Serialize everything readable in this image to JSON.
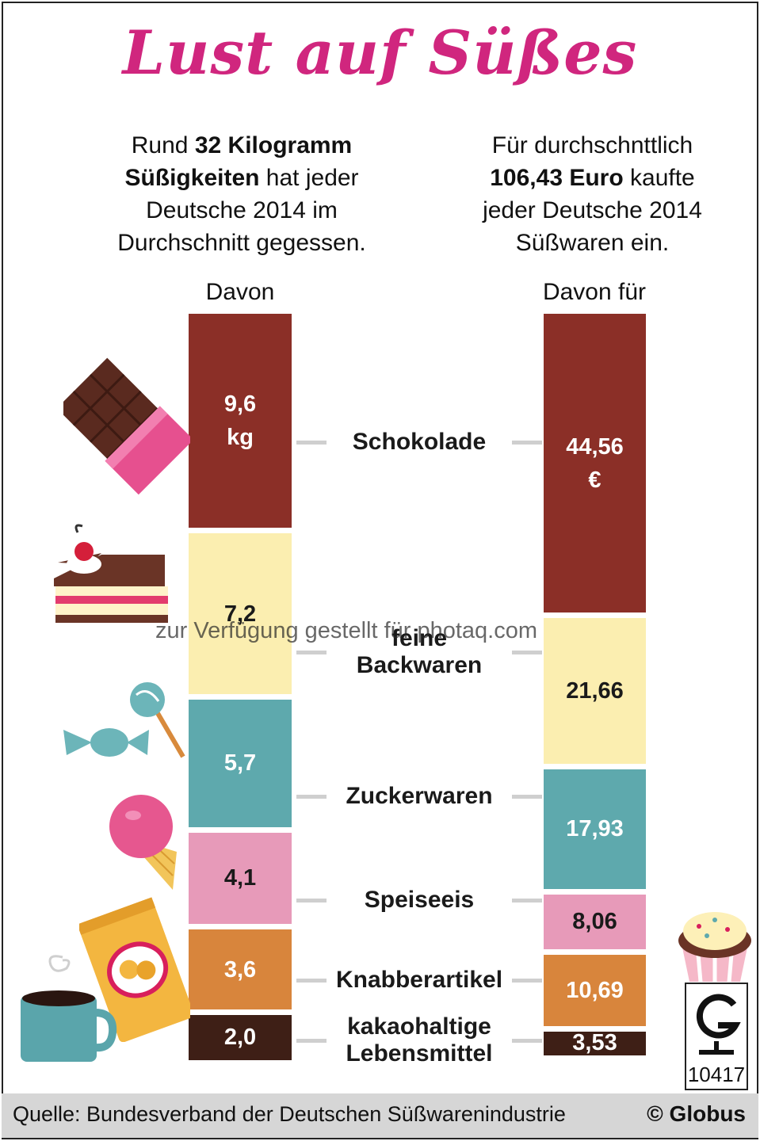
{
  "title": "Lust auf Süßes",
  "intro_left": {
    "pre": "Rund ",
    "bold1": "32 Kilogramm",
    "bold2": "Süßigkeiten",
    "mid": " hat jeder",
    "line3": "Deutsche 2014 im",
    "line4": "Durchschnitt gegessen."
  },
  "intro_right": {
    "line1": "Für durchschnttlich",
    "bold": "106,43 Euro",
    "mid": " kaufte",
    "line3": "jeder Deutsche 2014",
    "line4": "Süßwaren ein."
  },
  "left_header": "Davon",
  "right_header": "Davon für",
  "watermark": "zur Verfügung gestellt für photaq.com",
  "source": "Quelle: Bundesverband der Deutschen Süßwarenindustrie",
  "copyright": "© Globus",
  "logo_number": "10417",
  "colors": {
    "title": "#d0267e",
    "schokolade": "#8b2f27",
    "backwaren": "#fbeeb0",
    "zuckerwaren": "#5ea9ad",
    "speiseeis": "#e79ab9",
    "knabberartikel": "#d8853c",
    "kakao": "#3e1f16"
  },
  "chart_data": {
    "type": "bar",
    "stacked": true,
    "categories": [
      "Schokolade",
      "feine Backwaren",
      "Zuckerwaren",
      "Speiseeis",
      "Knabberartikel",
      "kakaohaltige Lebensmittel"
    ],
    "category_lines": [
      [
        "Schokolade"
      ],
      [
        "feine",
        "Backwaren"
      ],
      [
        "Zuckerwaren"
      ],
      [
        "Speiseeis"
      ],
      [
        "Knabberartikel"
      ],
      [
        "kakaohaltige",
        "Lebensmittel"
      ]
    ],
    "series": [
      {
        "name": "Davon",
        "unit": "kg",
        "total": 32,
        "values": [
          9.6,
          7.2,
          5.7,
          4.1,
          3.6,
          2.0
        ],
        "labels": [
          "9,6",
          "7,2",
          "5,7",
          "4,1",
          "3,6",
          "2,0"
        ],
        "first_unit_label": "kg"
      },
      {
        "name": "Davon für",
        "unit": "€",
        "total": 106.43,
        "values": [
          44.56,
          21.66,
          17.93,
          8.06,
          10.69,
          3.53
        ],
        "labels": [
          "44,56",
          "21,66",
          "17,93",
          "8,06",
          "10,69",
          "3,53"
        ],
        "first_unit_label": "€"
      }
    ],
    "segment_colors": [
      "#8b2f27",
      "#fbeeb0",
      "#5ea9ad",
      "#e79ab9",
      "#d8853c",
      "#3e1f16"
    ],
    "dark_text": [
      false,
      true,
      false,
      true,
      false,
      false
    ]
  }
}
